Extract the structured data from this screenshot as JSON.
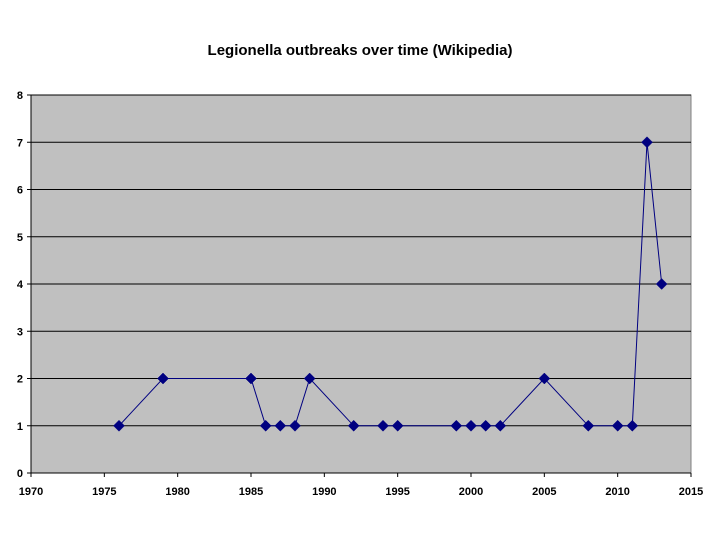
{
  "chart_data": {
    "type": "line",
    "title": "Legionella outbreaks over time (Wikipedia)",
    "xlabel": "",
    "ylabel": "",
    "xlim": [
      1970,
      2015
    ],
    "ylim": [
      0,
      8
    ],
    "x_ticks": [
      1970,
      1975,
      1980,
      1985,
      1990,
      1995,
      2000,
      2005,
      2010,
      2015
    ],
    "y_ticks": [
      0,
      1,
      2,
      3,
      4,
      5,
      6,
      7,
      8
    ],
    "grid": "horizontal",
    "legend": "none",
    "marker": "diamond",
    "colors": {
      "series": "#000080",
      "plot_background": "#c0c0c0",
      "grid": "#000000"
    },
    "series": [
      {
        "x": [
          1976,
          1979,
          1985,
          1986,
          1987,
          1988,
          1989,
          1992,
          1994,
          1995,
          1999,
          2000,
          2001,
          2002,
          2005,
          2008,
          2010,
          2011,
          2012,
          2013
        ],
        "y": [
          1,
          2,
          2,
          1,
          1,
          1,
          2,
          1,
          1,
          1,
          1,
          1,
          1,
          1,
          2,
          1,
          1,
          1,
          7,
          4
        ]
      }
    ]
  }
}
